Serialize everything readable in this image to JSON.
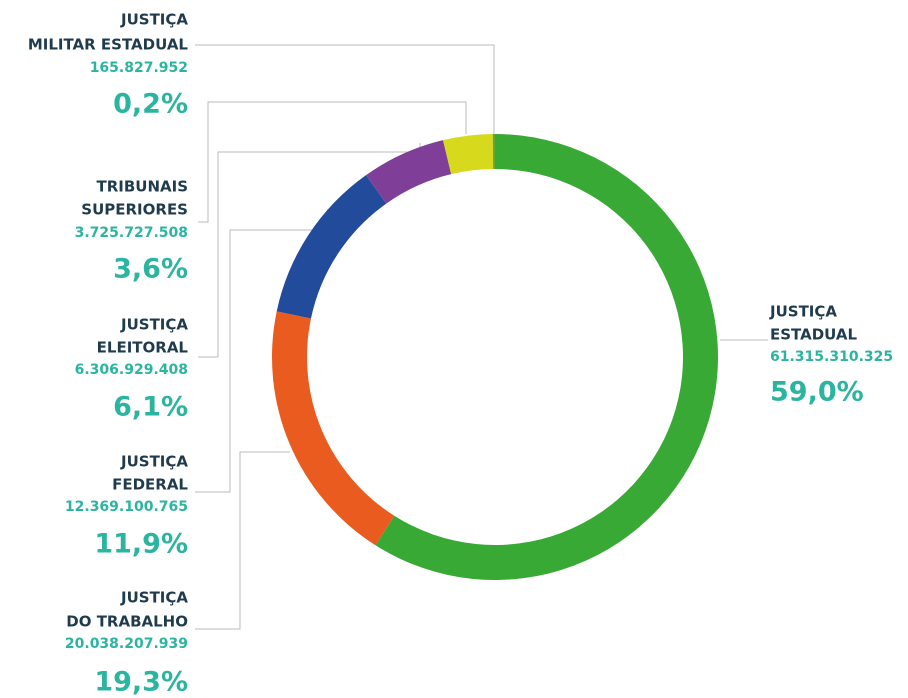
{
  "chart_data": {
    "type": "donut",
    "labels": [
      [
        "JUSTIÇA",
        "ESTADUAL"
      ],
      [
        "JUSTIÇA",
        "DO TRABALHO"
      ],
      [
        "JUSTIÇA",
        "FEDERAL"
      ],
      [
        "JUSTIÇA",
        "ELEITORAL"
      ],
      [
        "TRIBUNAIS",
        "SUPERIORES"
      ],
      [
        "JUSTIÇA",
        "MILITAR ESTADUAL"
      ]
    ],
    "values": [
      61315310325,
      20038207939,
      12369100765,
      6306929408,
      3725727508,
      165827952
    ],
    "value_labels": [
      "61.315.310.325",
      "20.038.207.939",
      "12.369.100.765",
      "6.306.929.408",
      "3.725.727.508",
      "165.827.952"
    ],
    "percentages": [
      59.0,
      19.3,
      11.9,
      6.1,
      3.6,
      0.2
    ],
    "percentage_labels": [
      "59,0%",
      "19,3%",
      "11,9%",
      "6,1%",
      "3,6%",
      "0,2%"
    ],
    "colors": [
      "#38a935",
      "#e95b1e",
      "#234b9b",
      "#7f3f98",
      "#d6d91c",
      "#6aa531"
    ]
  }
}
